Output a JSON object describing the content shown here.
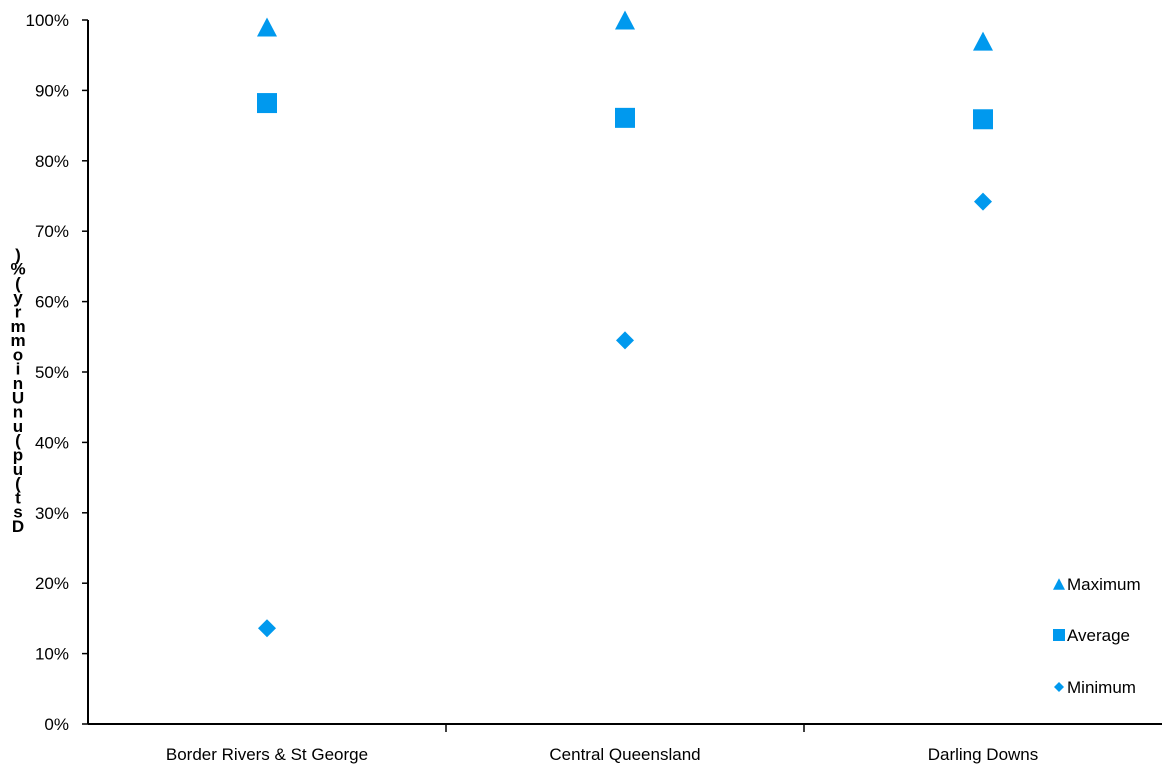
{
  "chart_data": {
    "type": "scatter",
    "categories": [
      "Border Rivers & St George",
      "Central Queensland",
      "Darling Downs"
    ],
    "series": [
      {
        "name": "Maximum",
        "marker": "triangle",
        "values": [
          99,
          100,
          97
        ]
      },
      {
        "name": "Average",
        "marker": "square",
        "values": [
          88.2,
          86.1,
          85.9
        ]
      },
      {
        "name": "Minimum",
        "marker": "diamond",
        "values": [
          13.6,
          54.5,
          74.2
        ]
      }
    ],
    "yticks": [
      "0%",
      "10%",
      "20%",
      "30%",
      "40%",
      "50%",
      "60%",
      "70%",
      "80%",
      "90%",
      "100%"
    ],
    "ylim": [
      0,
      100
    ],
    "ylabel": "Dust Uniformity (%)",
    "ylabel_render": "D​s​t​(​u​p​(​u​n​U​n​i​o​m​m​r​y​(​%​)",
    "xlabel": "",
    "title": "",
    "grid": false,
    "legend_position": "bottom-right",
    "marker_color": "#0099ee"
  }
}
